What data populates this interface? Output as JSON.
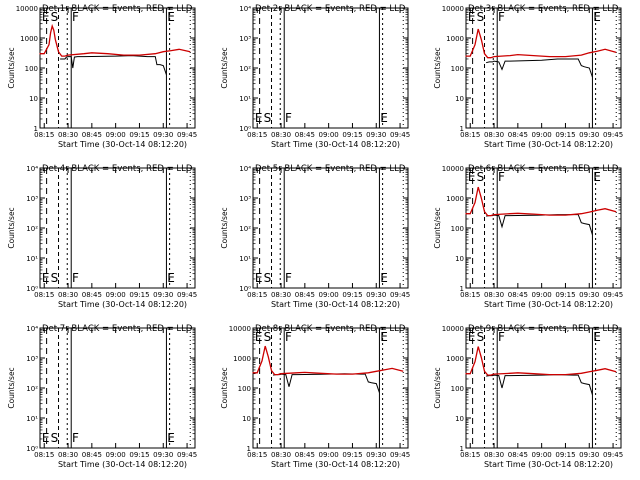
{
  "colors": {
    "events": "#000000",
    "lld": "#cc0000",
    "background": "#ffffff"
  },
  "time_ticks": [
    "08:15",
    "08:30",
    "08:45",
    "09:00",
    "09:15",
    "09:30",
    "09:45"
  ],
  "x_title": "Start Time (30-Oct-14 08:12:20)",
  "y_title": "Counts/sec",
  "markers": {
    "E": "E",
    "S": "S",
    "F": "F"
  },
  "chart_data": [
    {
      "title": "Det 1r BLACK = Events, RED = LLD",
      "type": "line",
      "yscale": "log",
      "ylim": [
        1,
        10000
      ],
      "yticks": [
        "1",
        "10",
        "100",
        "1000",
        "10000"
      ],
      "marker_labels": [
        "E",
        "S",
        "F",
        "E"
      ],
      "series": [
        {
          "name": "Events",
          "x": [
            "08:25",
            "08:26",
            "08:27",
            "08:28",
            "08:29",
            "08:30",
            "08:32",
            "08:33",
            "08:34",
            "08:36",
            "08:40",
            "09:00",
            "09:10",
            "09:20",
            "09:23",
            "09:25",
            "09:26",
            "09:28",
            "09:30",
            "09:32"
          ],
          "values": [
            200,
            200,
            200,
            200,
            230,
            240,
            240,
            100,
            230,
            240,
            240,
            250,
            260,
            240,
            240,
            240,
            130,
            130,
            120,
            60
          ]
        },
        {
          "name": "LLD",
          "x": [
            "08:12",
            "08:15",
            "08:18",
            "08:19",
            "08:20",
            "08:21",
            "08:22",
            "08:24",
            "08:26",
            "08:28",
            "08:30",
            "08:40",
            "08:45",
            "08:55",
            "09:05",
            "09:15",
            "09:25",
            "09:30",
            "09:35",
            "09:40",
            "09:47"
          ],
          "values": [
            300,
            300,
            600,
            1500,
            2500,
            1800,
            900,
            350,
            250,
            250,
            270,
            300,
            320,
            300,
            270,
            270,
            300,
            350,
            380,
            420,
            350
          ]
        }
      ]
    },
    {
      "title": "Det 2r BLACK = Events, RED = LLD",
      "type": "line",
      "yscale": "log",
      "ylim": [
        1,
        10000
      ],
      "yticks": [
        "10⁰",
        "10¹",
        "10²",
        "10³",
        "10⁴"
      ],
      "marker_labels": [
        "E",
        "S",
        "F",
        "E"
      ],
      "series": []
    },
    {
      "title": "Det 3r BLACK = Events, RED = LLD",
      "type": "line",
      "yscale": "log",
      "ylim": [
        1,
        10000
      ],
      "yticks": [
        "1",
        "10",
        "100",
        "1000",
        "10000"
      ],
      "marker_labels": [
        "E",
        "S",
        "F",
        "E"
      ],
      "series": [
        {
          "name": "Events",
          "x": [
            "08:25",
            "08:27",
            "08:29",
            "08:30",
            "08:33",
            "08:35",
            "08:37",
            "08:40",
            "09:00",
            "09:10",
            "09:20",
            "09:23",
            "09:25",
            "09:27",
            "09:30",
            "09:32"
          ],
          "values": [
            150,
            160,
            160,
            170,
            160,
            90,
            170,
            170,
            180,
            200,
            200,
            200,
            120,
            110,
            100,
            50
          ]
        },
        {
          "name": "LLD",
          "x": [
            "08:12",
            "08:15",
            "08:18",
            "08:20",
            "08:22",
            "08:24",
            "08:26",
            "08:28",
            "08:30",
            "08:40",
            "08:45",
            "08:55",
            "09:05",
            "09:15",
            "09:25",
            "09:30",
            "09:35",
            "09:40",
            "09:47"
          ],
          "values": [
            250,
            250,
            600,
            2000,
            900,
            300,
            220,
            220,
            240,
            260,
            280,
            260,
            240,
            240,
            270,
            320,
            360,
            420,
            330
          ]
        }
      ]
    },
    {
      "title": "Det 4r BLACK = Events, RED = LLD",
      "type": "line",
      "yscale": "log",
      "ylim": [
        1,
        10000
      ],
      "yticks": [
        "10⁰",
        "10¹",
        "10²",
        "10³",
        "10⁴"
      ],
      "marker_labels": [
        "E",
        "S",
        "F",
        "E"
      ],
      "series": []
    },
    {
      "title": "Det 5r BLACK = Events, RED = LLD",
      "type": "line",
      "yscale": "log",
      "ylim": [
        1,
        10000
      ],
      "yticks": [
        "10⁰",
        "10¹",
        "10²",
        "10³",
        "10⁴"
      ],
      "marker_labels": [
        "E",
        "S",
        "F",
        "E"
      ],
      "series": []
    },
    {
      "title": "Det 6r BLACK = Events, RED = LLD",
      "type": "line",
      "yscale": "log",
      "ylim": [
        1,
        10000
      ],
      "yticks": [
        "1",
        "10",
        "100",
        "1000",
        "10000"
      ],
      "marker_labels": [
        "E",
        "S",
        "F",
        "E"
      ],
      "series": [
        {
          "name": "Events",
          "x": [
            "08:25",
            "08:27",
            "08:29",
            "08:30",
            "08:33",
            "08:35",
            "08:37",
            "08:40",
            "09:00",
            "09:10",
            "09:20",
            "09:23",
            "09:25",
            "09:27",
            "09:30",
            "09:32"
          ],
          "values": [
            250,
            260,
            260,
            270,
            260,
            110,
            260,
            260,
            270,
            280,
            280,
            280,
            150,
            140,
            130,
            60
          ]
        },
        {
          "name": "LLD",
          "x": [
            "08:12",
            "08:15",
            "08:18",
            "08:20",
            "08:22",
            "08:24",
            "08:26",
            "08:28",
            "08:30",
            "08:40",
            "08:45",
            "08:55",
            "09:05",
            "09:15",
            "09:25",
            "09:30",
            "09:35",
            "09:40",
            "09:47"
          ],
          "values": [
            300,
            300,
            700,
            2300,
            1000,
            350,
            260,
            260,
            280,
            300,
            310,
            290,
            270,
            270,
            300,
            340,
            390,
            440,
            350
          ]
        }
      ]
    },
    {
      "title": "Det 7r BLACK = Events, RED = LLD",
      "type": "line",
      "yscale": "log",
      "ylim": [
        1,
        10000
      ],
      "yticks": [
        "10⁰",
        "10¹",
        "10²",
        "10³",
        "10⁴"
      ],
      "marker_labels": [
        "E",
        "S",
        "F",
        "E"
      ],
      "series": []
    },
    {
      "title": "Det 8r BLACK = Events, RED = LLD",
      "type": "line",
      "yscale": "log",
      "ylim": [
        1,
        10000
      ],
      "yticks": [
        "1",
        "10",
        "100",
        "1000",
        "10000"
      ],
      "marker_labels": [
        "E",
        "S",
        "F",
        "E"
      ],
      "series": [
        {
          "name": "Events",
          "x": [
            "08:25",
            "08:27",
            "08:29",
            "08:30",
            "08:33",
            "08:35",
            "08:37",
            "08:40",
            "09:00",
            "09:10",
            "09:20",
            "09:23",
            "09:25",
            "09:27",
            "09:30",
            "09:32"
          ],
          "values": [
            270,
            280,
            280,
            290,
            280,
            110,
            280,
            280,
            290,
            300,
            290,
            290,
            160,
            150,
            140,
            70
          ]
        },
        {
          "name": "LLD",
          "x": [
            "08:12",
            "08:15",
            "08:18",
            "08:20",
            "08:22",
            "08:24",
            "08:26",
            "08:28",
            "08:30",
            "08:40",
            "08:45",
            "08:55",
            "09:05",
            "09:15",
            "09:25",
            "09:30",
            "09:35",
            "09:40",
            "09:47"
          ],
          "values": [
            320,
            320,
            800,
            2500,
            1100,
            380,
            280,
            280,
            300,
            320,
            330,
            310,
            290,
            290,
            320,
            360,
            400,
            450,
            360
          ]
        }
      ]
    },
    {
      "title": "Det 9r BLACK = Events, RED = LLD",
      "type": "line",
      "yscale": "log",
      "ylim": [
        1,
        10000
      ],
      "yticks": [
        "1",
        "10",
        "100",
        "1000",
        "10000"
      ],
      "marker_labels": [
        "E",
        "S",
        "F",
        "E"
      ],
      "series": [
        {
          "name": "Events",
          "x": [
            "08:25",
            "08:27",
            "08:29",
            "08:30",
            "08:33",
            "08:35",
            "08:37",
            "08:40",
            "09:00",
            "09:10",
            "09:20",
            "09:23",
            "09:25",
            "09:27",
            "09:30",
            "09:32"
          ],
          "values": [
            250,
            260,
            260,
            270,
            260,
            100,
            260,
            260,
            270,
            280,
            270,
            270,
            150,
            140,
            130,
            60
          ]
        },
        {
          "name": "LLD",
          "x": [
            "08:12",
            "08:15",
            "08:18",
            "08:20",
            "08:22",
            "08:24",
            "08:26",
            "08:28",
            "08:30",
            "08:40",
            "08:45",
            "08:55",
            "09:05",
            "09:15",
            "09:25",
            "09:30",
            "09:35",
            "09:40",
            "09:47"
          ],
          "values": [
            300,
            300,
            750,
            2400,
            1050,
            360,
            270,
            270,
            290,
            310,
            320,
            300,
            280,
            280,
            310,
            350,
            390,
            440,
            350
          ]
        }
      ]
    }
  ]
}
